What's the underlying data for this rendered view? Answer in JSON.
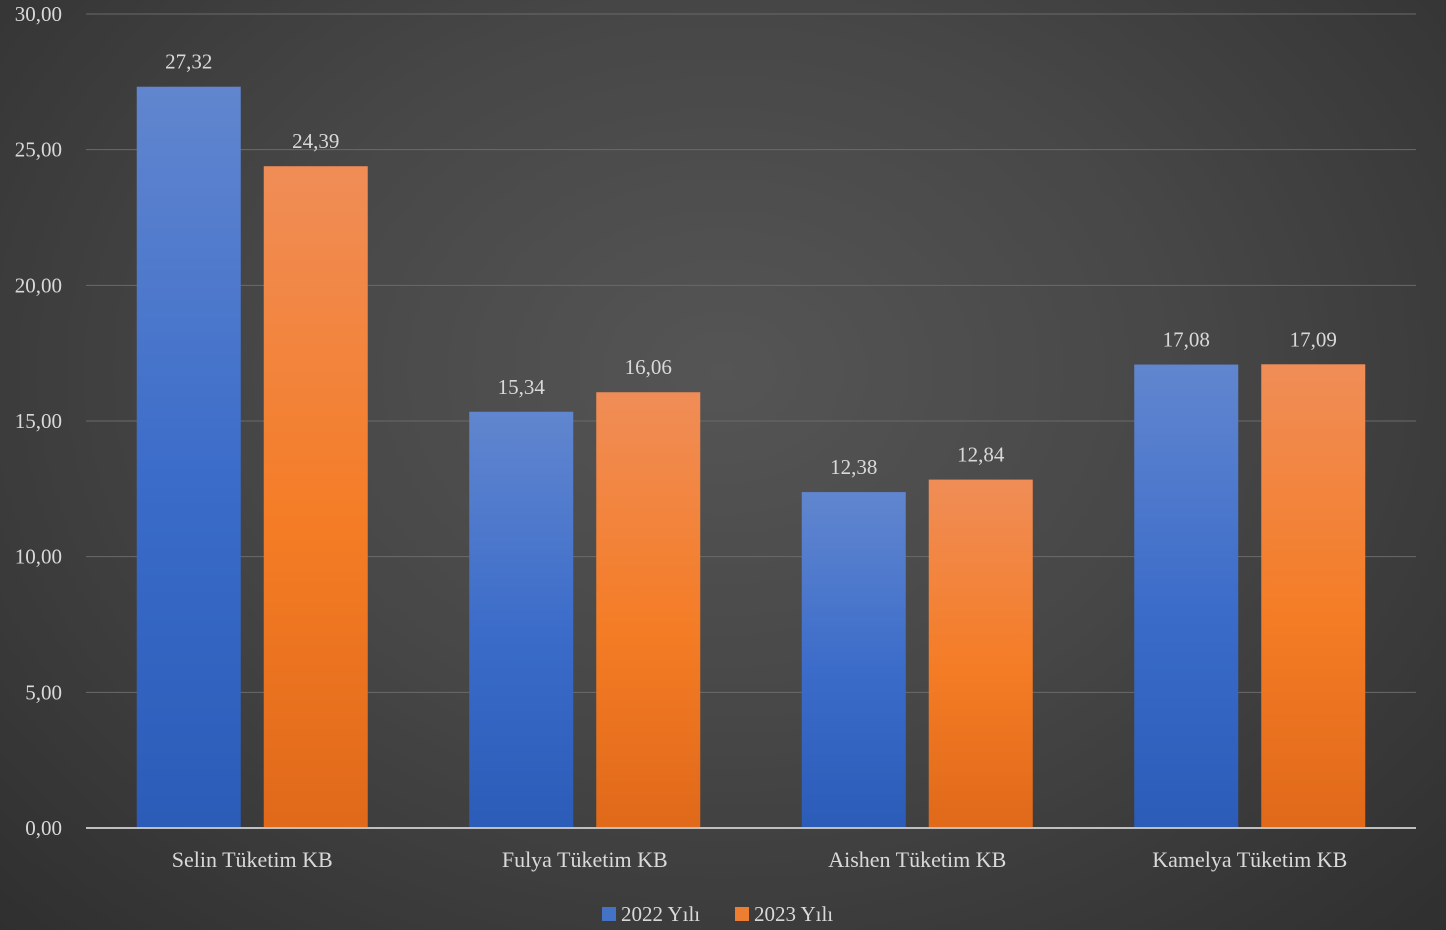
{
  "chart_data": {
    "type": "bar",
    "title": "",
    "xlabel": "",
    "ylabel": "",
    "categories": [
      "Selin Tüketim KB",
      "Fulya Tüketim KB",
      "Aishen Tüketim KB",
      "Kamelya Tüketim KB"
    ],
    "series": [
      {
        "name": "2022 Yılı",
        "values": [
          27.32,
          15.34,
          12.38,
          17.08
        ],
        "labels": [
          "27,32",
          "15,34",
          "12,38",
          "17,08"
        ],
        "color": "#4472c4"
      },
      {
        "name": "2023 Yılı",
        "values": [
          24.39,
          16.06,
          12.84,
          17.09
        ],
        "labels": [
          "24,39",
          "16,06",
          "12,84",
          "17,09"
        ],
        "color": "#ed7d31"
      }
    ],
    "yticks": [
      "0,00",
      "5,00",
      "10,00",
      "15,00",
      "20,00",
      "25,00",
      "30,00"
    ],
    "ylim": [
      0,
      30
    ],
    "grid": true,
    "legend": "bottom"
  }
}
